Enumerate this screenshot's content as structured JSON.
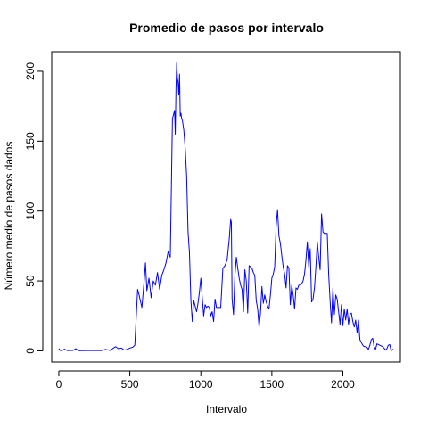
{
  "chart_data": {
    "type": "line",
    "title": "Promedio de pasos por intervalo",
    "xlabel": "Intervalo",
    "ylabel": "Número medio de pasos dados",
    "xlim": [
      -50,
      2405
    ],
    "ylim": [
      -8,
      214
    ],
    "x_ticks": [
      0,
      500,
      1000,
      1500,
      2000
    ],
    "y_ticks": [
      0,
      50,
      100,
      150,
      200
    ],
    "x_tick_labels": [
      "0",
      "500",
      "1000",
      "1500",
      "2000"
    ],
    "y_tick_labels": [
      "0",
      "50",
      "100",
      "150",
      "200"
    ],
    "grid": false,
    "series": [
      {
        "color": "#0000ff",
        "x": [
          0,
          10,
          20,
          40,
          60,
          100,
          120,
          140,
          200,
          250,
          300,
          330,
          360,
          400,
          420,
          440,
          460,
          480,
          500,
          520,
          535,
          555,
          565,
          585,
          600,
          610,
          620,
          635,
          650,
          665,
          680,
          695,
          710,
          725,
          740,
          755,
          770,
          785,
          800,
          815,
          820,
          825,
          830,
          835,
          840,
          845,
          850,
          855,
          860,
          865,
          870,
          880,
          890,
          900,
          910,
          920,
          930,
          940,
          950,
          960,
          970,
          980,
          990,
          1000,
          1010,
          1020,
          1030,
          1040,
          1050,
          1060,
          1070,
          1080,
          1090,
          1100,
          1110,
          1125,
          1140,
          1155,
          1170,
          1185,
          1200,
          1210,
          1215,
          1220,
          1230,
          1240,
          1250,
          1260,
          1270,
          1280,
          1290,
          1300,
          1310,
          1320,
          1330,
          1340,
          1350,
          1360,
          1370,
          1380,
          1390,
          1400,
          1410,
          1420,
          1430,
          1440,
          1450,
          1460,
          1470,
          1480,
          1490,
          1500,
          1510,
          1520,
          1530,
          1540,
          1550,
          1560,
          1570,
          1580,
          1590,
          1600,
          1610,
          1620,
          1630,
          1640,
          1650,
          1660,
          1670,
          1680,
          1690,
          1700,
          1710,
          1720,
          1730,
          1740,
          1750,
          1760,
          1770,
          1780,
          1790,
          1800,
          1810,
          1820,
          1830,
          1840,
          1850,
          1860,
          1870,
          1880,
          1890,
          1900,
          1910,
          1920,
          1930,
          1940,
          1950,
          1960,
          1970,
          1980,
          1990,
          2000,
          2010,
          2020,
          2030,
          2040,
          2050,
          2060,
          2070,
          2080,
          2090,
          2100,
          2110,
          2120,
          2130,
          2140,
          2150,
          2160,
          2170,
          2180,
          2190,
          2200,
          2210,
          2220,
          2230,
          2240,
          2250,
          2260,
          2270,
          2280,
          2290,
          2300,
          2310,
          2320,
          2330,
          2340,
          2350,
          2355
        ],
        "y": [
          1.7,
          0.3,
          0.1,
          1.2,
          0.2,
          0.3,
          1.5,
          0.1,
          0.2,
          0.3,
          0.2,
          1.0,
          0.3,
          3.0,
          1.5,
          2.0,
          0.5,
          1.0,
          2.0,
          2.5,
          4.0,
          44.0,
          40.0,
          31.0,
          49.0,
          63.0,
          43.0,
          52.0,
          38.0,
          50.0,
          47.0,
          56.0,
          44.0,
          54.0,
          58.0,
          63.0,
          71.0,
          67.0,
          166.0,
          172.0,
          155.0,
          188.0,
          206.0,
          195.0,
          192.0,
          183.0,
          198.0,
          168.0,
          170.0,
          166.0,
          165.0,
          158.0,
          145.0,
          125.0,
          85.0,
          70.0,
          36.0,
          21.0,
          36.0,
          32.0,
          28.0,
          34.0,
          42.0,
          52.0,
          38.0,
          25.0,
          33.0,
          31.0,
          32.0,
          31.0,
          25.0,
          28.0,
          21.0,
          37.0,
          31.0,
          31.0,
          31.0,
          59.0,
          61.0,
          65.0,
          80.0,
          94.0,
          92.0,
          37.0,
          26.0,
          54.0,
          67.0,
          59.0,
          52.0,
          47.0,
          44.0,
          28.0,
          58.0,
          50.0,
          27.0,
          61.0,
          60.0,
          59.0,
          56.0,
          54.0,
          36.0,
          30.0,
          17.0,
          27.0,
          46.0,
          34.0,
          40.0,
          35.0,
          32.0,
          30.0,
          40.0,
          52.0,
          55.0,
          60.0,
          89.0,
          101.0,
          82.0,
          77.0,
          68.0,
          60.0,
          55.0,
          45.0,
          61.0,
          59.0,
          33.0,
          47.0,
          40.0,
          30.0,
          45.0,
          44.0,
          47.0,
          47.0,
          48.0,
          50.0,
          55.0,
          65.0,
          78.0,
          60.0,
          73.0,
          35.0,
          37.0,
          45.0,
          60.0,
          78.0,
          67.0,
          58.0,
          98.0,
          85.0,
          84.0,
          84.0,
          84.0,
          55.0,
          36.0,
          20.0,
          45.0,
          26.0,
          40.0,
          37.0,
          28.0,
          19.0,
          33.0,
          18.0,
          30.0,
          22.0,
          30.0,
          19.0,
          26.0,
          27.0,
          21.0,
          17.0,
          22.0,
          13.0,
          22.0,
          8.0,
          6.0,
          4.0,
          3.0,
          3.0,
          2.5,
          1.0,
          4.0,
          8.0,
          9.0,
          3.0,
          1.0,
          5.0,
          4.5,
          4.0,
          3.5,
          3.0,
          2.0,
          0.5,
          1.5,
          4.0,
          4.5,
          0.0,
          1.0,
          1.0
        ]
      }
    ]
  }
}
